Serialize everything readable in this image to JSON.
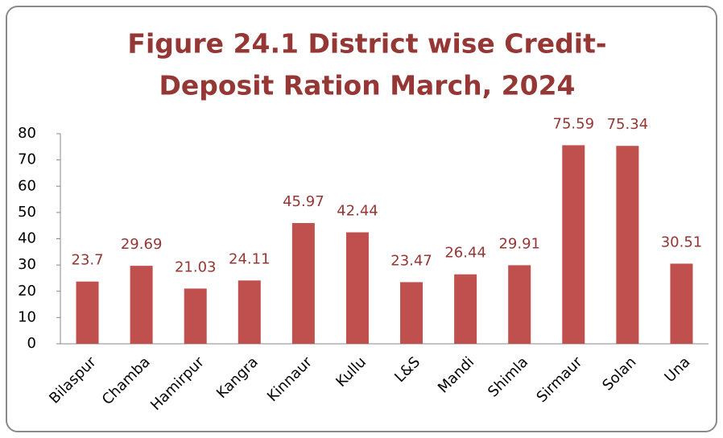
{
  "chart_data": {
    "type": "bar",
    "title": [
      "Figure 24.1 District wise Credit-",
      "Deposit Ration March, 2024"
    ],
    "categories": [
      "Bilaspur",
      "Chamba",
      "Hamirpur",
      "Kangra",
      "Kinnaur",
      "Kullu",
      "L&S",
      "Mandi",
      "Shimla",
      "Sirmaur",
      "Solan",
      "Una"
    ],
    "values": [
      23.7,
      29.69,
      21.03,
      24.11,
      45.97,
      42.44,
      23.47,
      26.44,
      29.91,
      75.59,
      75.34,
      30.51
    ],
    "color": "#c0504d",
    "ylim": [
      0,
      80
    ],
    "yticks": [
      0,
      10,
      20,
      30,
      40,
      50,
      60,
      70,
      80
    ],
    "grid": false
  }
}
